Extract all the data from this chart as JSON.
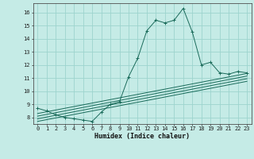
{
  "title": "",
  "xlabel": "Humidex (Indice chaleur)",
  "background_color": "#c5ebe6",
  "grid_color": "#9dd4ce",
  "line_color": "#1a6b5a",
  "xlim": [
    -0.5,
    23.5
  ],
  "ylim": [
    7.5,
    16.7
  ],
  "xticks": [
    0,
    1,
    2,
    3,
    4,
    5,
    6,
    7,
    8,
    9,
    10,
    11,
    12,
    13,
    14,
    15,
    16,
    17,
    18,
    19,
    20,
    21,
    22,
    23
  ],
  "yticks": [
    8,
    9,
    10,
    11,
    12,
    13,
    14,
    15,
    16
  ],
  "main_series": {
    "x": [
      0,
      1,
      2,
      3,
      4,
      5,
      6,
      7,
      8,
      9,
      10,
      11,
      12,
      13,
      14,
      15,
      16,
      17,
      18,
      19,
      20,
      21,
      22,
      23
    ],
    "y": [
      8.7,
      8.5,
      8.2,
      8.0,
      7.9,
      7.8,
      7.7,
      8.4,
      9.0,
      9.2,
      11.1,
      12.5,
      14.6,
      15.4,
      15.2,
      15.4,
      16.3,
      14.5,
      12.0,
      12.2,
      11.4,
      11.3,
      11.5,
      11.4
    ]
  },
  "linear_series": [
    {
      "x": [
        0,
        23
      ],
      "y": [
        8.3,
        11.35
      ]
    },
    {
      "x": [
        0,
        23
      ],
      "y": [
        8.1,
        11.15
      ]
    },
    {
      "x": [
        0,
        23
      ],
      "y": [
        7.9,
        10.95
      ]
    },
    {
      "x": [
        0,
        23
      ],
      "y": [
        7.7,
        10.75
      ]
    }
  ],
  "xlabel_fontsize": 6,
  "tick_fontsize": 5,
  "linewidth": 0.7,
  "marker_size": 2.5
}
